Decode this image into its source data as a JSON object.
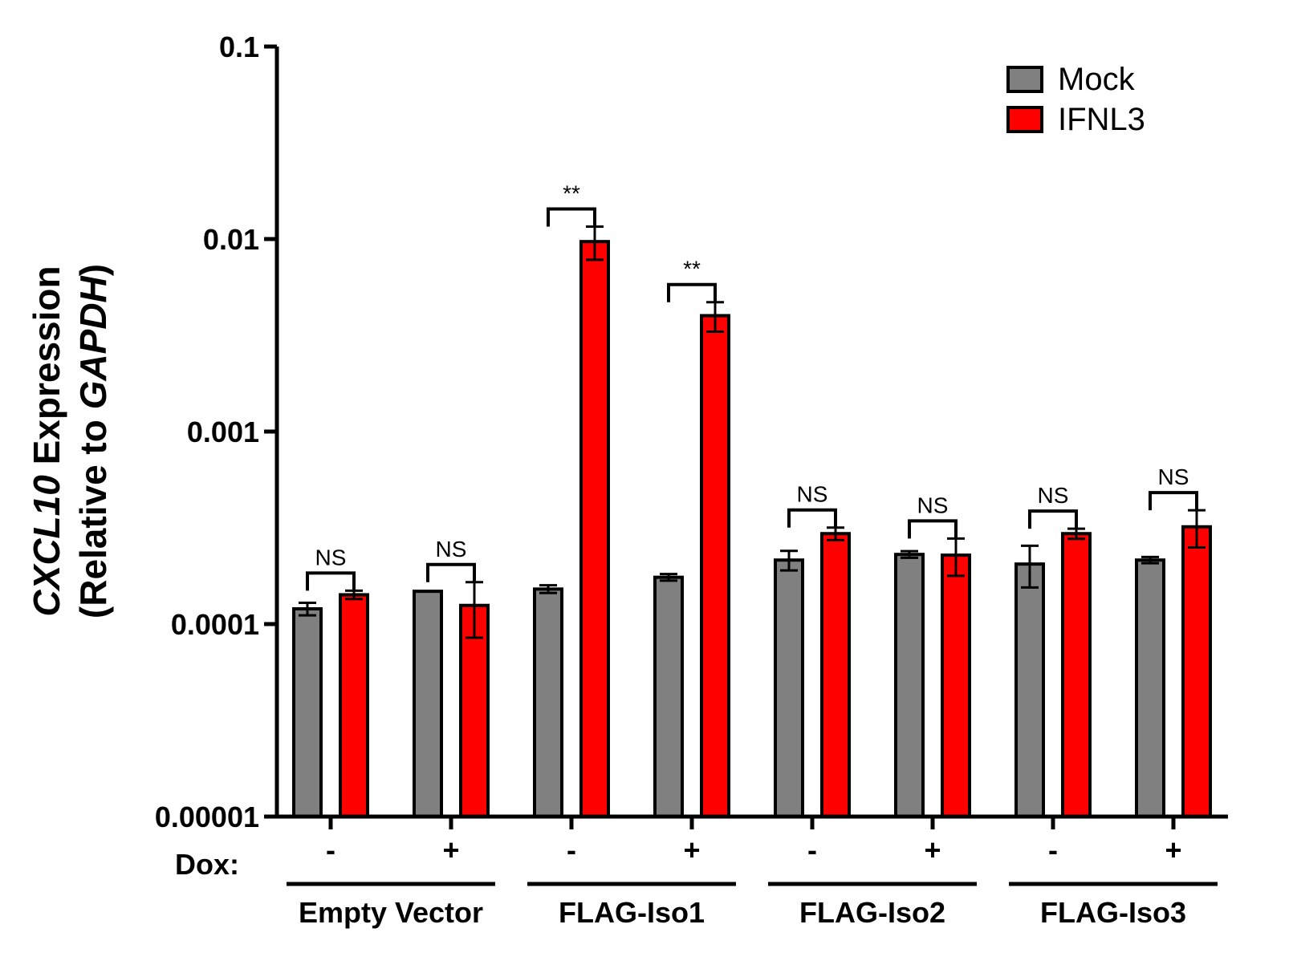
{
  "chart_data": {
    "type": "bar",
    "scale": "log",
    "ylabel_line1_italic": "CXCL10",
    "ylabel_line1_rest": " Expression",
    "ylabel_line2_prefix": "(Relative to ",
    "ylabel_line2_italic": "GAPDH",
    "ylabel_line2_suffix": ")",
    "ylim": [
      1e-05,
      0.1
    ],
    "yticks": [
      1e-05,
      0.0001,
      0.001,
      0.01,
      0.1
    ],
    "ytick_labels": [
      "0.00001",
      "0.0001",
      "0.001",
      "0.01",
      "0.1"
    ],
    "dox_row_label": "Dox:",
    "categories": [
      "-",
      "+",
      "-",
      "+",
      "-",
      "+",
      "-",
      "+"
    ],
    "groups": [
      {
        "label": "Empty Vector",
        "categories": [
          0,
          1
        ]
      },
      {
        "label": "FLAG-Iso1",
        "categories": [
          2,
          3
        ]
      },
      {
        "label": "FLAG-Iso2",
        "categories": [
          4,
          5
        ]
      },
      {
        "label": "FLAG-Iso3",
        "categories": [
          6,
          7
        ]
      }
    ],
    "series": [
      {
        "name": "Mock",
        "color": "#808080",
        "values": [
          0.00012,
          0.000148,
          0.000152,
          0.000175,
          0.000215,
          0.00023,
          0.000205,
          0.000215
        ],
        "errors": [
          9e-06,
          0,
          7e-06,
          7e-06,
          2.5e-05,
          9e-06,
          5e-05,
          8e-06
        ]
      },
      {
        "name": "IFNL3",
        "color": "#ff0000",
        "values": [
          0.000142,
          0.000125,
          0.0097,
          0.004,
          0.000295,
          0.000228,
          0.000295,
          0.00032
        ],
        "errors": [
          7e-06,
          4e-05,
          0.0019,
          0.0007,
          2.2e-05,
          5e-05,
          1.8e-05,
          7e-05
        ]
      }
    ],
    "significance": [
      "NS",
      "NS",
      "**",
      "**",
      "NS",
      "NS",
      "NS",
      "NS"
    ],
    "legend": [
      "Mock",
      "IFNL3"
    ],
    "legend_position": "top-right",
    "grid": false
  }
}
